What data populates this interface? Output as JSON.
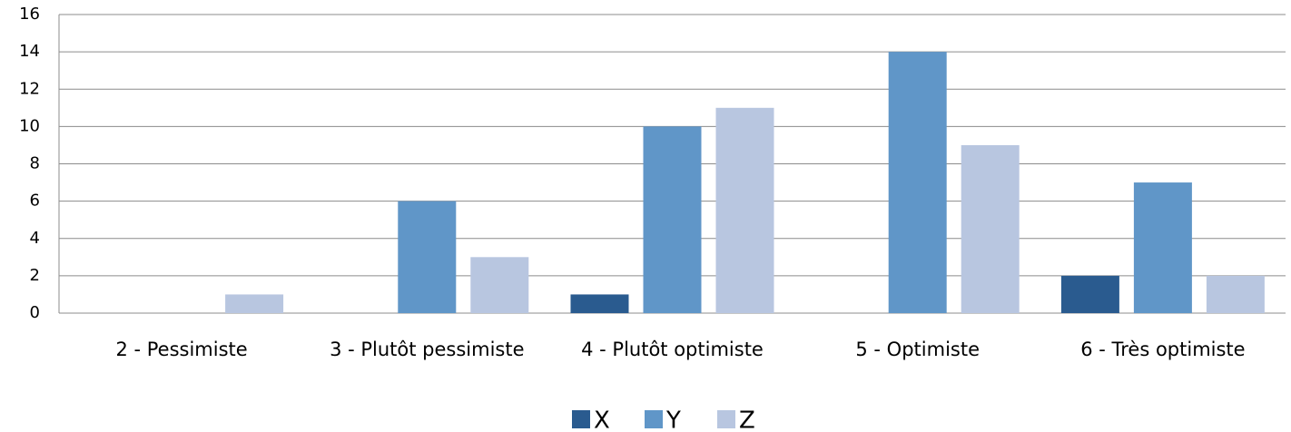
{
  "chart_data": {
    "type": "bar",
    "categories": [
      "2 - Pessimiste",
      "3 - Plutôt pessimiste",
      "4 - Plutôt optimiste",
      "5 - Optimiste",
      "6 - Très optimiste"
    ],
    "series": [
      {
        "name": "X",
        "color": "#2a5b8f",
        "values": [
          0,
          0,
          1,
          0,
          2
        ]
      },
      {
        "name": "Y",
        "color": "#6096c8",
        "values": [
          0,
          6,
          10,
          14,
          7
        ]
      },
      {
        "name": "Z",
        "color": "#b8c6e0",
        "values": [
          1,
          3,
          11,
          9,
          2
        ]
      }
    ],
    "ylim": [
      0,
      16
    ],
    "yticks": [
      0,
      2,
      4,
      6,
      8,
      10,
      12,
      14,
      16
    ],
    "grid": true,
    "legend": "bottom"
  }
}
